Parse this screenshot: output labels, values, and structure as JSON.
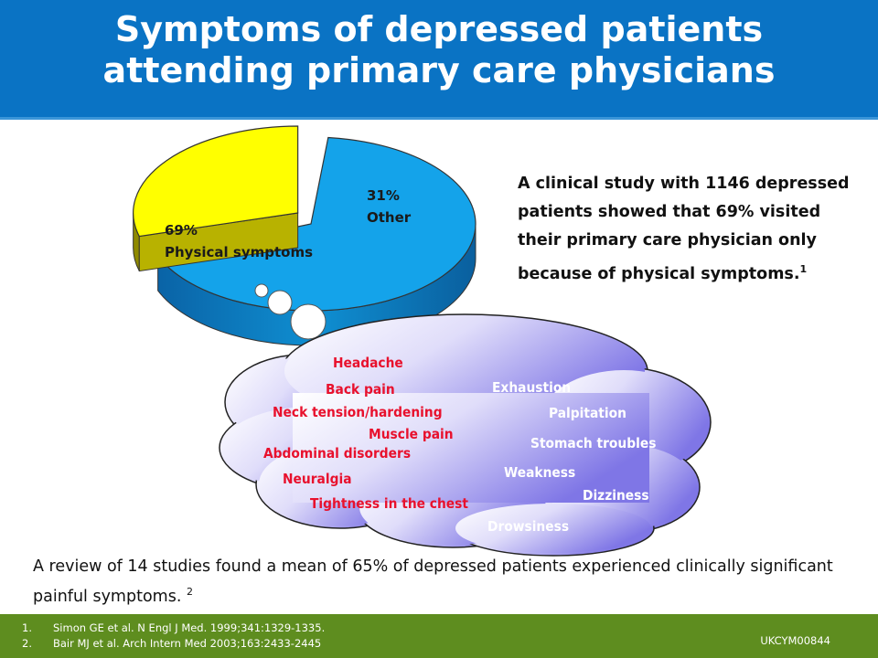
{
  "header": {
    "title": "Symptoms of depressed patients attending primary care physicians"
  },
  "colors": {
    "header_bg": "#0a73c4",
    "footer_bg": "#5e8d1f",
    "physical_slice": "#14a3ea",
    "other_slice": "#ffff00",
    "cloud": "#8e86ea",
    "red_text": "#e8112d"
  },
  "chart_data": {
    "type": "pie",
    "title": "",
    "slices": [
      {
        "label": "Physical symptoms",
        "value": 69,
        "value_label": "69%",
        "color": "#14a3ea"
      },
      {
        "label": "Other",
        "value": 31,
        "value_label": "31%",
        "color": "#ffff00",
        "exploded": true
      }
    ]
  },
  "study_text": {
    "text": "A clinical study with 1146 depressed patients showed that 69% visited their primary care physician only because of physical symptoms.",
    "ref": "1"
  },
  "cloud": {
    "physical_symptoms": [
      "Headache",
      "Back pain",
      "Neck tension/hardening",
      "Muscle pain",
      "Abdominal disorders",
      "Neuralgia",
      "Tightness in the chest"
    ],
    "other_symptoms": [
      "Exhaustion",
      "Palpitation",
      "Stomach troubles",
      "Weakness",
      "Dizziness",
      "Drowsiness"
    ]
  },
  "review_text": {
    "text": "A review of 14 studies found a mean of 65% of depressed patients experienced clinically significant painful symptoms.",
    "ref": "2"
  },
  "footer": {
    "references": [
      {
        "num": "1.",
        "text": "Simon GE et al. N Engl J Med. 1999;341:1329-1335."
      },
      {
        "num": "2.",
        "text": "Bair MJ et al. Arch Intern Med 2003;163:2433-2445"
      }
    ],
    "code": "UKCYM00844"
  }
}
